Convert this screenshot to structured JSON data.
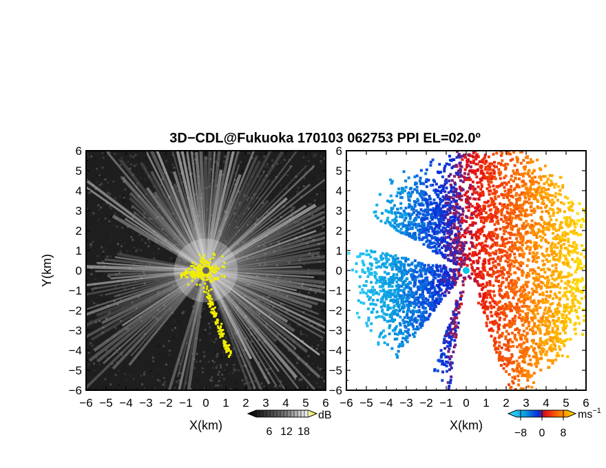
{
  "chart_data": {
    "title": "3D−CDL@Fukuoka 170103 062753 PPI EL=02.0º",
    "panels": [
      {
        "type": "heatmap",
        "quantity": "backscatter intensity",
        "xlabel": "X(km)",
        "ylabel": "Y(km)",
        "xlim": [
          -6,
          6
        ],
        "ylim": [
          -6,
          6
        ],
        "xticks": [
          "−6",
          "−5",
          "−4",
          "−3",
          "−2",
          "−1",
          "0",
          "1",
          "2",
          "3",
          "4",
          "5",
          "6"
        ],
        "yticks": [
          "6",
          "5",
          "4",
          "3",
          "2",
          "1",
          "0",
          "−1",
          "−2",
          "−3",
          "−4",
          "−5",
          "−6"
        ],
        "colorbar": {
          "unit": "dB",
          "ticks": [
            "6",
            "12",
            "18"
          ],
          "colormap": "gray-to-yellow"
        },
        "background": "#1e1e1e",
        "highlight_color": "#f2ee00",
        "radar_position": [
          0,
          0
        ],
        "shadow_sectors_deg": [
          [
            150,
            168
          ],
          [
            232,
            252
          ],
          [
            262,
            290
          ]
        ]
      },
      {
        "type": "heatmap",
        "quantity": "Doppler velocity",
        "xlabel": "X(km)",
        "ylabel": "",
        "xlim": [
          -6,
          6
        ],
        "ylim": [
          -6,
          6
        ],
        "xticks": [
          "−6",
          "−5",
          "−4",
          "−3",
          "−2",
          "−1",
          "0",
          "1",
          "2",
          "3",
          "4",
          "5",
          "6"
        ],
        "yticks": [
          "6",
          "5",
          "4",
          "3",
          "2",
          "1",
          "0",
          "−1",
          "−2",
          "−3",
          "−4",
          "−5",
          "−6"
        ],
        "colorbar": {
          "unit": "ms",
          "unit_exponent": "−1",
          "ticks": [
            "−8",
            "0",
            "8"
          ],
          "colormap": "cyan-blue-red-yellow",
          "range": [
            -12,
            12
          ]
        },
        "radar_position": [
          0,
          0
        ],
        "marker_color": "#00c8e8"
      }
    ]
  }
}
